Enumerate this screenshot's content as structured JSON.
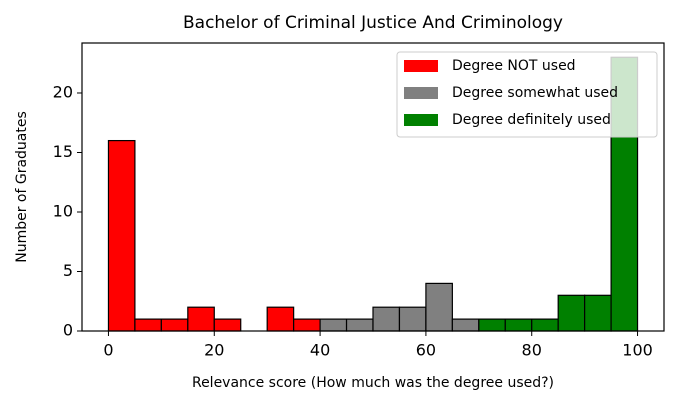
{
  "chart_data": {
    "type": "histogram",
    "title": "Bachelor of Criminal Justice And Criminology",
    "xlabel": "Relevance score (How much was the degree used?)",
    "ylabel": "Number of Graduates",
    "series": [
      {
        "name": "Degree NOT used",
        "color": "#ff0000",
        "bins": [
          0,
          5,
          10,
          15,
          20,
          25,
          30,
          35,
          40
        ],
        "values": [
          16,
          1,
          1,
          2,
          1,
          0,
          2,
          1
        ]
      },
      {
        "name": "Degree somewhat used",
        "color": "#808080",
        "bins": [
          40,
          45,
          50,
          55,
          60,
          65,
          70
        ],
        "values": [
          1,
          1,
          2,
          2,
          4,
          1
        ]
      },
      {
        "name": "Degree definitely used",
        "color": "#008000",
        "bins": [
          70,
          75,
          80,
          85,
          90,
          95,
          100
        ],
        "values": [
          1,
          1,
          1,
          3,
          3,
          23
        ]
      }
    ],
    "xlim": [
      -5,
      105
    ],
    "ylim": [
      0,
      24.2
    ],
    "xticks": [
      0,
      20,
      40,
      60,
      80,
      100
    ],
    "yticks": [
      0,
      5,
      10,
      15,
      20
    ],
    "legend": "upper right"
  }
}
